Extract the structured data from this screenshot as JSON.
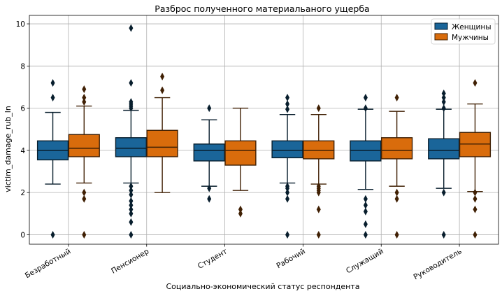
{
  "chart_data": {
    "type": "boxplot",
    "title": "Разброс полученного материальаного ущерба",
    "xlabel": "Социально-экономический статус респондента",
    "ylabel": "victim_damage_rub_ln",
    "ylim": [
      -0.45,
      10.4
    ],
    "yticks": [
      0,
      2,
      4,
      6,
      8,
      10
    ],
    "grid": true,
    "legend_position": "top-right",
    "categories": [
      "Безработный",
      "Пенсионер",
      "Студент",
      "Рабочий",
      "Служащий",
      "Руководитель"
    ],
    "series": [
      {
        "name": "Женщины",
        "color": "#1f77b4",
        "boxes": [
          {
            "whislo": 2.4,
            "q1": 3.55,
            "med": 4.0,
            "q3": 4.45,
            "whishi": 5.8,
            "fliers": [
              0,
              6.5,
              7.2
            ]
          },
          {
            "whislo": 2.45,
            "q1": 3.7,
            "med": 4.1,
            "q3": 4.6,
            "whishi": 5.9,
            "fliers": [
              0,
              0.6,
              1.0,
              1.2,
              1.4,
              1.6,
              1.9,
              2.1,
              2.3,
              6.0,
              6.1,
              6.2,
              6.3,
              7.2,
              9.8
            ]
          },
          {
            "whislo": 2.3,
            "q1": 3.5,
            "med": 4.0,
            "q3": 4.3,
            "whishi": 5.45,
            "fliers": [
              1.7,
              2.2,
              6.0
            ]
          },
          {
            "whislo": 2.45,
            "q1": 3.65,
            "med": 4.0,
            "q3": 4.45,
            "whishi": 5.7,
            "fliers": [
              0,
              1.7,
              2.0,
              2.2,
              2.3,
              5.95,
              6.2,
              6.5
            ]
          },
          {
            "whislo": 2.15,
            "q1": 3.5,
            "med": 4.0,
            "q3": 4.45,
            "whishi": 5.95,
            "fliers": [
              0,
              0.5,
              1.1,
              1.4,
              1.7,
              6.0,
              6.5
            ]
          },
          {
            "whislo": 2.2,
            "q1": 3.6,
            "med": 4.0,
            "q3": 4.55,
            "whishi": 5.95,
            "fliers": [
              0,
              2.0,
              6.0,
              6.3,
              6.5,
              6.7
            ]
          }
        ]
      },
      {
        "name": "Мужчины",
        "color": "#ff7f0e",
        "boxes": [
          {
            "whislo": 2.45,
            "q1": 3.7,
            "med": 4.1,
            "q3": 4.75,
            "whishi": 6.1,
            "fliers": [
              0,
              1.7,
              2.0,
              6.3,
              6.5,
              6.9
            ]
          },
          {
            "whislo": 2.0,
            "q1": 3.7,
            "med": 4.15,
            "q3": 4.95,
            "whishi": 6.5,
            "fliers": [
              6.85,
              7.5
            ]
          },
          {
            "whislo": 2.1,
            "q1": 3.3,
            "med": 4.0,
            "q3": 4.45,
            "whishi": 6.0,
            "fliers": [
              1.0,
              1.2
            ]
          },
          {
            "whislo": 2.4,
            "q1": 3.6,
            "med": 4.0,
            "q3": 4.45,
            "whishi": 5.7,
            "fliers": [
              0,
              1.2,
              2.0,
              2.1,
              2.2,
              2.3,
              6.0
            ]
          },
          {
            "whislo": 2.3,
            "q1": 3.6,
            "med": 4.0,
            "q3": 4.6,
            "whishi": 5.85,
            "fliers": [
              0,
              1.7,
              2.0,
              6.5
            ]
          },
          {
            "whislo": 2.05,
            "q1": 3.7,
            "med": 4.3,
            "q3": 4.85,
            "whishi": 6.2,
            "fliers": [
              0,
              1.2,
              1.7,
              2.0,
              7.2
            ]
          }
        ]
      }
    ]
  }
}
